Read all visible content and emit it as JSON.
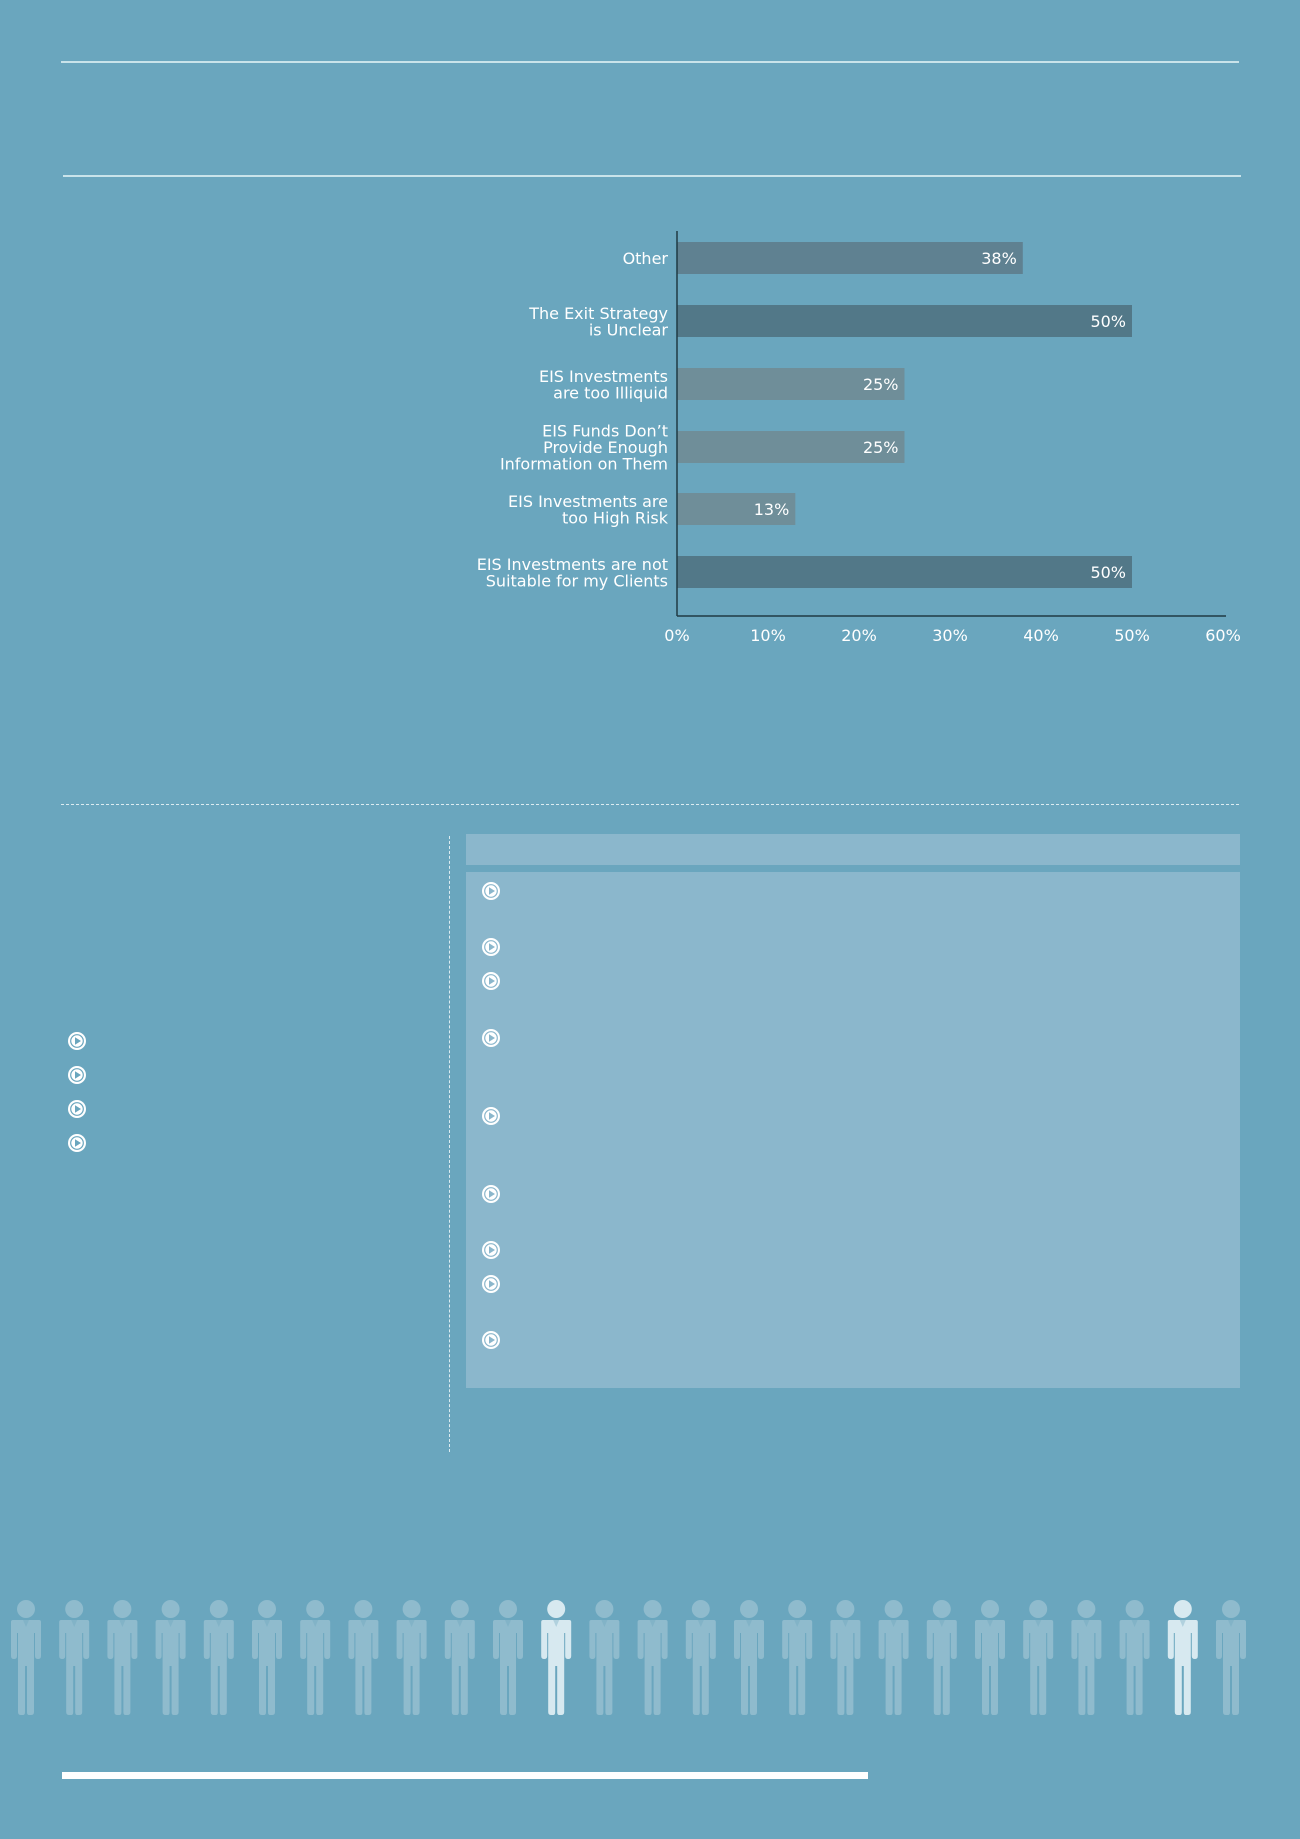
{
  "chart_data": {
    "type": "bar",
    "orientation": "horizontal",
    "categories": [
      "Other",
      "The Exit Strategy is Unclear",
      "EIS Investments are too Illiquid",
      "EIS Funds Don't Provide Enough Information on Them",
      "EIS Investments are too High Risk",
      "EIS Investments are not Suitable for my Clients"
    ],
    "category_lines": [
      [
        "Other"
      ],
      [
        "The Exit Strategy",
        "is Unclear"
      ],
      [
        "EIS Investments",
        "are  too Illiquid"
      ],
      [
        "EIS Funds Don’t",
        "Provide Enough",
        "Information  on Them"
      ],
      [
        "EIS Investments  are",
        "too High Risk"
      ],
      [
        "EIS Investments  are  not",
        "Suitable for my Clients"
      ]
    ],
    "values": [
      38,
      50,
      25,
      25,
      13,
      50
    ],
    "data_labels": [
      "38%",
      "50%",
      "25%",
      "25%",
      "13%",
      "50%"
    ],
    "xlim": [
      0,
      60
    ],
    "xticks": [
      0,
      10,
      20,
      30,
      40,
      50,
      60
    ],
    "xtick_labels": [
      "0%",
      "10%",
      "20%",
      "30%",
      "40%",
      "50%",
      "60%"
    ],
    "bar_colors": [
      "#5f8191",
      "#527888",
      "#6f8e99",
      "#6f8e99",
      "#6f8e99",
      "#527888"
    ],
    "grid": false,
    "legend": "none"
  },
  "icons": {
    "bullet": "play-circle-icon",
    "figure": "person-icon"
  },
  "colors": {
    "background": "#6aa6be",
    "panel": "#8bb7cc",
    "rule": "#c9e3ea",
    "figure_dim": "#8fbbcd",
    "figure_highlight": "#d7e9f0"
  },
  "people": {
    "count": 26,
    "highlighted": [
      11,
      24
    ]
  }
}
